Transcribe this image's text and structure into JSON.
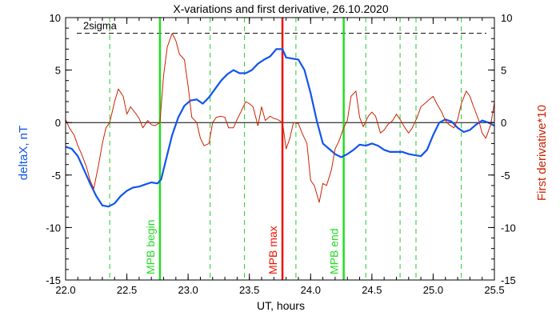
{
  "chart_data": {
    "type": "line",
    "title": "X-variations and first derivative, 26.10.2020",
    "xlabel": "UT, hours",
    "ylabel_left": "deltaX, nT",
    "ylabel_right": "First derivative*10",
    "xlim": [
      22.0,
      25.5
    ],
    "ylim": [
      -15,
      10
    ],
    "x_ticks": [
      22.0,
      22.5,
      23.0,
      23.5,
      24.0,
      24.5,
      25.0,
      25.5
    ],
    "x_tick_labels": [
      "22.0",
      "22.5",
      "23.0",
      "23.5",
      "24.0",
      "24.5",
      "25.0",
      "25.5"
    ],
    "y_ticks": [
      -15,
      -10,
      -5,
      0,
      5,
      10
    ],
    "y_tick_labels": [
      "-15",
      "-10",
      "-5",
      "0",
      "5",
      "10"
    ],
    "sigma": {
      "label": "2sigma",
      "value": 8.5
    },
    "zero_line": 0,
    "markers": [
      {
        "label": "MPB begin",
        "x": 22.77,
        "color": "#22dd22"
      },
      {
        "label": "MPB max",
        "x": 23.77,
        "color": "#ee1100"
      },
      {
        "label": "MPB end",
        "x": 24.27,
        "color": "#22dd22"
      }
    ],
    "dashed_x": [
      22.36,
      23.18,
      23.46,
      23.88,
      24.45,
      24.73,
      24.86,
      25.23
    ],
    "series": [
      {
        "color": "#1155ee",
        "x": [
          22.0,
          22.05,
          22.1,
          22.15,
          22.2,
          22.25,
          22.3,
          22.35,
          22.4,
          22.45,
          22.5,
          22.55,
          22.6,
          22.65,
          22.7,
          22.75,
          22.78,
          22.82,
          22.87,
          22.92,
          22.97,
          23.02,
          23.07,
          23.12,
          23.17,
          23.22,
          23.27,
          23.32,
          23.37,
          23.42,
          23.47,
          23.52,
          23.57,
          23.62,
          23.67,
          23.72,
          23.77,
          23.8,
          23.85,
          23.9,
          23.95,
          24.0,
          24.05,
          24.1,
          24.15,
          24.2,
          24.25,
          24.3,
          24.35,
          24.4,
          24.45,
          24.5,
          24.55,
          24.6,
          24.65,
          24.7,
          24.75,
          24.8,
          24.85,
          24.9,
          24.95,
          25.0,
          25.05,
          25.1,
          25.15,
          25.2,
          25.25,
          25.3,
          25.35,
          25.4,
          25.45,
          25.5
        ],
        "y": [
          -2.3,
          -2.5,
          -3.2,
          -4.5,
          -5.8,
          -7.0,
          -7.9,
          -8.0,
          -7.7,
          -7.0,
          -6.5,
          -6.2,
          -6.1,
          -5.9,
          -5.7,
          -5.8,
          -5.4,
          -3.5,
          -1.2,
          0.5,
          1.6,
          2.1,
          2.2,
          1.8,
          2.4,
          3.2,
          4.0,
          4.6,
          5.0,
          4.7,
          4.7,
          5.0,
          5.6,
          6.0,
          6.3,
          7.0,
          7.0,
          6.2,
          6.1,
          6.0,
          5.0,
          2.8,
          0.2,
          -2.0,
          -2.5,
          -3.0,
          -3.3,
          -3.0,
          -2.6,
          -2.1,
          -2.2,
          -2.0,
          -2.2,
          -2.6,
          -2.8,
          -2.8,
          -2.8,
          -3.0,
          -3.1,
          -3.2,
          -2.6,
          -1.2,
          0.0,
          0.3,
          0.1,
          -0.5,
          -0.9,
          -0.7,
          -0.2,
          0.2,
          0.0,
          -0.3
        ]
      },
      {
        "color": "#cc2200",
        "x": [
          22.0,
          22.03,
          22.07,
          22.1,
          22.13,
          22.17,
          22.2,
          22.23,
          22.27,
          22.3,
          22.33,
          22.36,
          22.4,
          22.43,
          22.47,
          22.5,
          22.53,
          22.57,
          22.6,
          22.63,
          22.67,
          22.7,
          22.73,
          22.77,
          22.8,
          22.83,
          22.87,
          22.9,
          22.93,
          22.97,
          23.0,
          23.03,
          23.07,
          23.1,
          23.13,
          23.17,
          23.2,
          23.23,
          23.27,
          23.3,
          23.33,
          23.37,
          23.4,
          23.43,
          23.47,
          23.5,
          23.53,
          23.57,
          23.6,
          23.63,
          23.67,
          23.7,
          23.73,
          23.77,
          23.8,
          23.83,
          23.86,
          23.9,
          23.93,
          23.97,
          24.0,
          24.03,
          24.07,
          24.1,
          24.13,
          24.17,
          24.2,
          24.23,
          24.27,
          24.3,
          24.33,
          24.37,
          24.4,
          24.43,
          24.47,
          24.5,
          24.53,
          24.57,
          24.6,
          24.63,
          24.67,
          24.7,
          24.73,
          24.77,
          24.8,
          24.83,
          24.87,
          24.9,
          24.93,
          24.97,
          25.0,
          25.03,
          25.07,
          25.1,
          25.13,
          25.17,
          25.2,
          25.23,
          25.27,
          25.3,
          25.33,
          25.37,
          25.4,
          25.43,
          25.47,
          25.5
        ],
        "y": [
          0.3,
          -0.5,
          -1.2,
          -2.2,
          -3.0,
          -4.2,
          -5.5,
          -6.3,
          -4.0,
          -2.0,
          -0.5,
          0.0,
          2.0,
          3.2,
          2.5,
          0.8,
          1.5,
          0.9,
          0.4,
          -0.5,
          0.2,
          -0.2,
          -0.3,
          0.0,
          4.5,
          7.2,
          8.5,
          7.8,
          6.5,
          6.0,
          3.5,
          0.5,
          0.0,
          -1.5,
          -2.2,
          -2.0,
          0.0,
          0.5,
          0.6,
          0.5,
          -0.5,
          -0.5,
          0.3,
          1.0,
          2.0,
          1.8,
          1.5,
          -0.3,
          1.5,
          0.2,
          0.6,
          0.4,
          0.3,
          0.0,
          -2.5,
          -1.5,
          0.0,
          -0.1,
          -1.0,
          -2.0,
          -5.5,
          -6.0,
          -7.6,
          -5.8,
          -6.0,
          -4.5,
          -2.5,
          -1.8,
          -0.5,
          0.2,
          2.5,
          3.0,
          0.5,
          -0.4,
          0.6,
          1.0,
          0.6,
          -1.0,
          -0.7,
          -0.2,
          0.2,
          0.8,
          0.3,
          -0.5,
          -1.0,
          -0.5,
          0.5,
          1.5,
          1.8,
          2.2,
          2.5,
          1.8,
          1.0,
          0.2,
          -0.2,
          -0.5,
          0.3,
          1.8,
          3.0,
          2.5,
          1.5,
          0.3,
          -1.0,
          -1.5,
          -0.2,
          1.9
        ]
      }
    ]
  }
}
